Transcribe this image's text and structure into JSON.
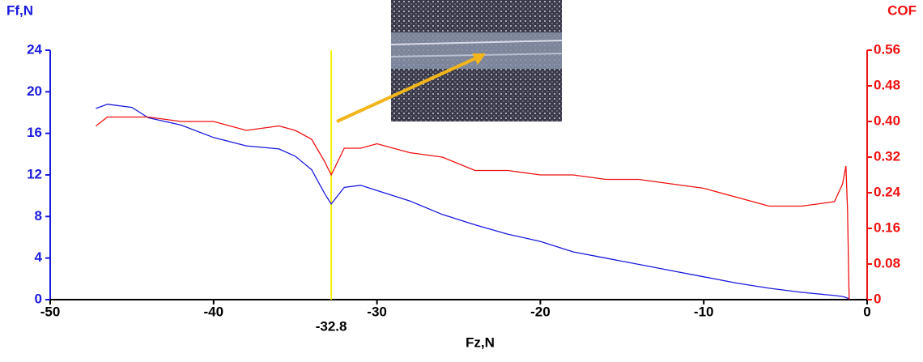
{
  "chart_data": {
    "type": "line",
    "x_label": "Fz,N",
    "y_label": "Ff,N",
    "y2_label": "COF",
    "x": [
      -47.2,
      -46.5,
      -45,
      -44,
      -42,
      -40,
      -38,
      -36,
      -35,
      -34,
      -33.2,
      -32.8,
      -32,
      -31,
      -30,
      -28,
      -26,
      -24,
      -22,
      -20,
      -18,
      -16,
      -14,
      -12,
      -10,
      -8,
      -6,
      -4,
      -2,
      -1.5,
      -1.3,
      -1.2,
      -1.1
    ],
    "series": [
      {
        "name": "Ff,N",
        "color": "#1a1adc",
        "values": [
          18.4,
          18.8,
          18.5,
          17.5,
          16.8,
          15.6,
          14.8,
          14.5,
          13.8,
          12.5,
          10.2,
          9.2,
          10.8,
          11.0,
          10.5,
          9.5,
          8.2,
          7.2,
          6.3,
          5.6,
          4.6,
          4.0,
          3.4,
          2.8,
          2.2,
          1.6,
          1.1,
          0.7,
          0.4,
          0.3,
          0.2,
          0.15,
          0.1
        ]
      },
      {
        "name": "COF",
        "color": "#ee1111",
        "axis": "y2",
        "values": [
          0.39,
          0.41,
          0.41,
          0.41,
          0.4,
          0.4,
          0.38,
          0.39,
          0.38,
          0.36,
          0.31,
          0.28,
          0.34,
          0.34,
          0.35,
          0.33,
          0.32,
          0.29,
          0.29,
          0.28,
          0.28,
          0.27,
          0.27,
          0.26,
          0.25,
          0.23,
          0.21,
          0.21,
          0.22,
          0.26,
          0.3,
          0.2,
          0.0
        ]
      }
    ],
    "vline": -32.8,
    "xlim": [
      -50,
      0
    ],
    "xticks": [
      -50,
      -40,
      -30,
      -20,
      -10,
      0
    ],
    "ylim": [
      0,
      24
    ],
    "yticks": [
      0,
      4,
      8,
      12,
      16,
      20,
      24
    ],
    "y2lim": [
      0,
      0.56
    ],
    "y2ticks": [
      0,
      0.08,
      0.16,
      0.24,
      0.32,
      {
        "value": 0.4,
        "label": "0.40"
      },
      0.48,
      0.56
    ]
  }
}
